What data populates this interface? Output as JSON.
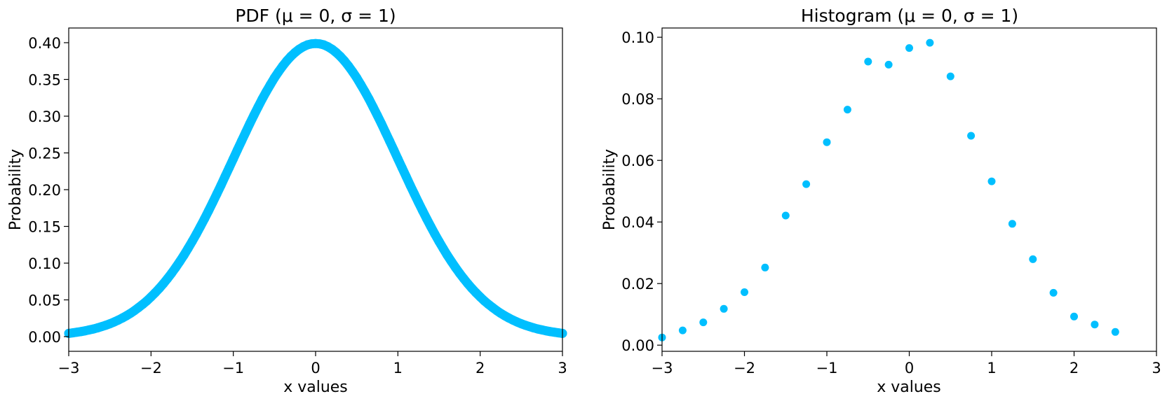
{
  "marker_color": "#00bfff",
  "chart_data": [
    {
      "type": "scatter",
      "title": "PDF (μ = 0, σ = 1)",
      "xlabel": "x values",
      "ylabel": "Probability",
      "xlim": [
        -3,
        3
      ],
      "ylim": [
        -0.02,
        0.42
      ],
      "xticks": [
        -3,
        -2,
        -1,
        0,
        1,
        2,
        3
      ],
      "xtick_labels": [
        "−3",
        "−2",
        "−1",
        "0",
        "1",
        "2",
        "3"
      ],
      "yticks": [
        0.0,
        0.05,
        0.1,
        0.15,
        0.2,
        0.25,
        0.3,
        0.35,
        0.4
      ],
      "ytick_labels": [
        "0.00",
        "0.05",
        "0.10",
        "0.15",
        "0.20",
        "0.25",
        "0.30",
        "0.35",
        "0.40"
      ],
      "grid": false,
      "legend": "none",
      "series": [
        {
          "x": [
            -3.0,
            -2.95,
            -2.9,
            -2.85,
            -2.8,
            -2.75,
            -2.7,
            -2.65,
            -2.6,
            -2.55,
            -2.5,
            -2.45,
            -2.4,
            -2.35,
            -2.3,
            -2.25,
            -2.2,
            -2.15,
            -2.1,
            -2.05,
            -2.0,
            -1.95,
            -1.9,
            -1.85,
            -1.8,
            -1.75,
            -1.7,
            -1.65,
            -1.6,
            -1.55,
            -1.5,
            -1.45,
            -1.4,
            -1.35,
            -1.3,
            -1.25,
            -1.2,
            -1.15,
            -1.1,
            -1.05,
            -1.0,
            -0.95,
            -0.9,
            -0.85,
            -0.8,
            -0.75,
            -0.7,
            -0.65,
            -0.6,
            -0.55,
            -0.5,
            -0.45,
            -0.4,
            -0.35,
            -0.3,
            -0.25,
            -0.2,
            -0.15,
            -0.1,
            -0.05,
            0.0,
            0.05,
            0.1,
            0.15,
            0.2,
            0.25,
            0.3,
            0.35,
            0.4,
            0.45,
            0.5,
            0.55,
            0.6,
            0.65,
            0.7,
            0.75,
            0.8,
            0.85,
            0.9,
            0.95,
            1.0,
            1.05,
            1.1,
            1.15,
            1.2,
            1.25,
            1.3,
            1.35,
            1.4,
            1.45,
            1.5,
            1.55,
            1.6,
            1.65,
            1.7,
            1.75,
            1.8,
            1.85,
            1.9,
            1.95,
            2.0,
            2.05,
            2.1,
            2.15,
            2.2,
            2.25,
            2.3,
            2.35,
            2.4,
            2.45,
            2.5,
            2.55,
            2.6,
            2.65,
            2.7,
            2.75,
            2.8,
            2.85,
            2.9,
            2.95,
            3.0
          ],
          "y": [
            0.0044,
            0.0051,
            0.006,
            0.0069,
            0.0079,
            0.0091,
            0.0104,
            0.0119,
            0.0136,
            0.0154,
            0.0175,
            0.0198,
            0.0224,
            0.0252,
            0.0283,
            0.0317,
            0.0355,
            0.0396,
            0.044,
            0.0488,
            0.054,
            0.0596,
            0.0656,
            0.072,
            0.079,
            0.0863,
            0.094,
            0.1023,
            0.1109,
            0.12,
            0.1295,
            0.1394,
            0.1497,
            0.1604,
            0.1714,
            0.1826,
            0.1942,
            0.2059,
            0.2179,
            0.2299,
            0.242,
            0.2541,
            0.2661,
            0.278,
            0.2897,
            0.3011,
            0.3123,
            0.323,
            0.3332,
            0.3429,
            0.3521,
            0.3605,
            0.3683,
            0.3752,
            0.3814,
            0.3867,
            0.391,
            0.3945,
            0.397,
            0.3984,
            0.3989,
            0.3984,
            0.397,
            0.3945,
            0.391,
            0.3867,
            0.3814,
            0.3752,
            0.3683,
            0.3605,
            0.3521,
            0.3429,
            0.3332,
            0.323,
            0.3123,
            0.3011,
            0.2897,
            0.278,
            0.2661,
            0.2541,
            0.242,
            0.2299,
            0.2179,
            0.2059,
            0.1942,
            0.1826,
            0.1714,
            0.1604,
            0.1497,
            0.1394,
            0.1295,
            0.12,
            0.1109,
            0.1023,
            0.094,
            0.0863,
            0.079,
            0.072,
            0.0656,
            0.0596,
            0.054,
            0.0488,
            0.044,
            0.0396,
            0.0355,
            0.0317,
            0.0283,
            0.0252,
            0.0224,
            0.0198,
            0.0175,
            0.0154,
            0.0136,
            0.0119,
            0.0104,
            0.0091,
            0.0079,
            0.0069,
            0.006,
            0.0051,
            0.0044
          ]
        }
      ]
    },
    {
      "type": "scatter",
      "title": "Histogram (μ = 0, σ = 1)",
      "xlabel": "x values",
      "ylabel": "Probability",
      "xlim": [
        -3,
        3
      ],
      "ylim": [
        -0.002,
        0.103
      ],
      "xticks": [
        -3,
        -2,
        -1,
        0,
        1,
        2,
        3
      ],
      "xtick_labels": [
        "−3",
        "−2",
        "−1",
        "0",
        "1",
        "2",
        "3"
      ],
      "yticks": [
        0.0,
        0.02,
        0.04,
        0.06,
        0.08,
        0.1
      ],
      "ytick_labels": [
        "0.00",
        "0.02",
        "0.04",
        "0.06",
        "0.08",
        "0.10"
      ],
      "grid": false,
      "legend": "none",
      "series": [
        {
          "x": [
            -3.0,
            -2.75,
            -2.5,
            -2.25,
            -2.0,
            -1.75,
            -1.5,
            -1.25,
            -1.0,
            -0.75,
            -0.5,
            -0.25,
            0.0,
            0.25,
            0.5,
            0.75,
            1.0,
            1.25,
            1.5,
            1.75,
            2.0,
            2.25,
            2.5
          ],
          "y": [
            0.0025,
            0.0048,
            0.0074,
            0.0118,
            0.0172,
            0.0252,
            0.0421,
            0.0523,
            0.0659,
            0.0765,
            0.0921,
            0.0911,
            0.0965,
            0.0982,
            0.0873,
            0.068,
            0.0532,
            0.0394,
            0.0279,
            0.017,
            0.0093,
            0.0067,
            0.0043
          ]
        }
      ]
    }
  ]
}
